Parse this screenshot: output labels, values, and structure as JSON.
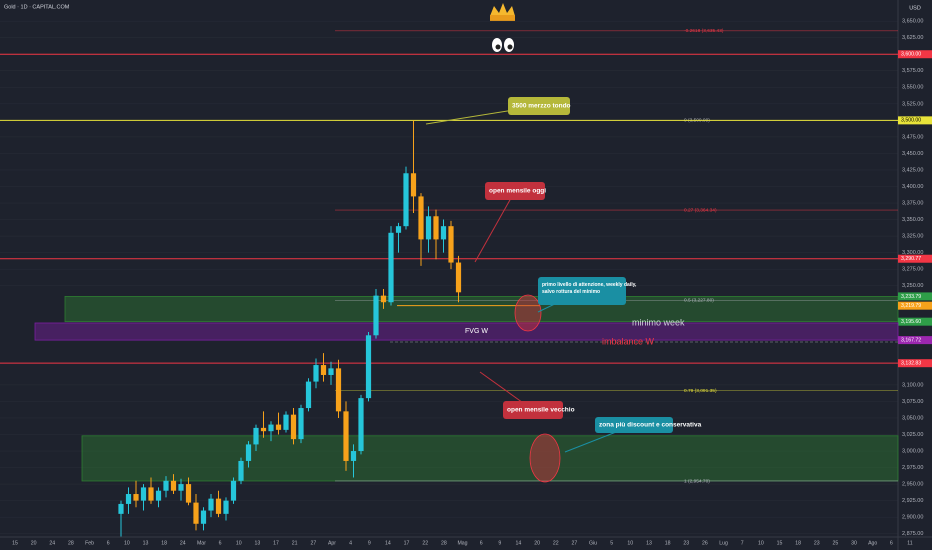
{
  "chart_data": {
    "type": "candlestick",
    "title": "Gold · 1D · CAPITAL.COM",
    "currency": "USD",
    "up_color": "#26c6da",
    "down_color": "#f7a21b",
    "ylim": [
      2870,
      3682
    ],
    "yticks": [
      {
        "value": 3650,
        "label": "3,650.00"
      },
      {
        "value": 3625,
        "label": "3,625.00"
      },
      {
        "value": 3575,
        "label": "3,575.00"
      },
      {
        "value": 3550,
        "label": "3,550.00"
      },
      {
        "value": 3525,
        "label": "3,525.00"
      },
      {
        "value": 3475,
        "label": "3,475.00"
      },
      {
        "value": 3450,
        "label": "3,450.00"
      },
      {
        "value": 3425,
        "label": "3,425.00"
      },
      {
        "value": 3400,
        "label": "3,400.00"
      },
      {
        "value": 3375,
        "label": "3,375.00"
      },
      {
        "value": 3350,
        "label": "3,350.00"
      },
      {
        "value": 3325,
        "label": "3,325.00"
      },
      {
        "value": 3300,
        "label": "3,300.00"
      },
      {
        "value": 3275,
        "label": "3,275.00"
      },
      {
        "value": 3250,
        "label": "3,250.00"
      },
      {
        "value": 3100,
        "label": "3,100.00"
      },
      {
        "value": 3075,
        "label": "3,075.00"
      },
      {
        "value": 3050,
        "label": "3,050.00"
      },
      {
        "value": 3025,
        "label": "3,025.00"
      },
      {
        "value": 3000,
        "label": "3,000.00"
      },
      {
        "value": 2975,
        "label": "2,975.00"
      },
      {
        "value": 2950,
        "label": "2,950.00"
      },
      {
        "value": 2925,
        "label": "2,925.00"
      },
      {
        "value": 2900,
        "label": "2,900.00"
      },
      {
        "value": 2875,
        "label": "2,875.00"
      }
    ],
    "x_labels": [
      "15",
      "20",
      "24",
      "28",
      "Feb",
      "6",
      "10",
      "13",
      "18",
      "24",
      "Mar",
      "6",
      "10",
      "13",
      "17",
      "21",
      "27",
      "Apr",
      "4",
      "9",
      "14",
      "17",
      "22",
      "28",
      "Mag",
      "6",
      "9",
      "14",
      "20",
      "22",
      "27",
      "Giu",
      "5",
      "10",
      "13",
      "18",
      "23",
      "26",
      "Lug",
      "7",
      "10",
      "15",
      "18",
      "23",
      "25",
      "30",
      "Ago",
      "6",
      "11"
    ],
    "open": [
      2905,
      2920,
      2935,
      2925,
      2945,
      2925,
      2940,
      2955,
      2940,
      2950,
      2922,
      2890,
      2910,
      2928,
      2905,
      2925,
      2955,
      2985,
      3010,
      3035,
      3030,
      3040,
      3032,
      3055,
      3018,
      3065,
      3105,
      3130,
      3115,
      3125,
      3060,
      2985,
      3000,
      3080,
      3175,
      3235,
      3225,
      3330,
      3340,
      3420,
      3385,
      3320,
      3355,
      3320,
      3340,
      3285
    ],
    "high": [
      2925,
      2945,
      2955,
      2950,
      2960,
      2945,
      2962,
      2965,
      2958,
      2960,
      2935,
      2915,
      2935,
      2940,
      2930,
      2960,
      2990,
      3015,
      3040,
      3060,
      3045,
      3058,
      3060,
      3065,
      3070,
      3110,
      3140,
      3148,
      3135,
      3138,
      3075,
      3010,
      3085,
      3180,
      3245,
      3245,
      3340,
      3345,
      3430,
      3500,
      3390,
      3370,
      3365,
      3350,
      3348,
      3295
    ],
    "low": [
      2870,
      2905,
      2915,
      2910,
      2920,
      2915,
      2930,
      2935,
      2925,
      2918,
      2880,
      2880,
      2900,
      2900,
      2895,
      2920,
      2950,
      2975,
      3000,
      3020,
      3015,
      3025,
      3028,
      3010,
      3012,
      3060,
      3095,
      3105,
      3100,
      3050,
      2970,
      2960,
      2995,
      3075,
      3170,
      3215,
      3220,
      3300,
      3335,
      3360,
      3280,
      3300,
      3290,
      3300,
      3275,
      3225
    ],
    "close": [
      2920,
      2935,
      2925,
      2945,
      2925,
      2940,
      2955,
      2940,
      2950,
      2922,
      2890,
      2910,
      2928,
      2905,
      2925,
      2955,
      2985,
      3010,
      3035,
      3030,
      3040,
      3032,
      3055,
      3018,
      3065,
      3105,
      3130,
      3115,
      3125,
      3060,
      2985,
      3000,
      3080,
      3175,
      3235,
      3225,
      3330,
      3340,
      3420,
      3385,
      3320,
      3355,
      3320,
      3340,
      3285,
      3240
    ],
    "levels": [
      {
        "value": 3600,
        "label": "3,600.00",
        "color": "#f23645"
      },
      {
        "value": 3500,
        "label": "3,500.00",
        "color": "#e8e33a"
      },
      {
        "value": 3290.77,
        "label": "3,290.77",
        "color": "#f23645"
      },
      {
        "value": 3132.83,
        "label": "3,132.83",
        "color": "#f23645"
      },
      {
        "value": 3219.79,
        "label": "3,219.79",
        "color": "#f7a21b"
      }
    ],
    "zones": [
      {
        "top": 3233.79,
        "bottom": 3195.6,
        "top_label": "3,233.79",
        "bottom_label": "3,195.60",
        "color": "#2e7d32"
      },
      {
        "top": 3193.6,
        "bottom": 3167.72,
        "bottom_label": "3,167.72",
        "color": "#7b1fa2"
      },
      {
        "top": 3023,
        "bottom": 2954.7,
        "color": "#2e7d32"
      }
    ],
    "fib": [
      {
        "value": 3635.43,
        "label": "-0.2618 (3,635.43)",
        "color": "#f23645"
      },
      {
        "value": 3500.09,
        "label": "0 (3,500.09)",
        "color": "#b2b5be"
      },
      {
        "value": 3364.34,
        "label": "0.27 (3,364.34)",
        "color": "#f23645"
      },
      {
        "value": 3227.8,
        "label": "0.5 (3,227.80)",
        "color": "#b2b5be"
      },
      {
        "value": 3091.35,
        "label": "0.79 (3,091.35)",
        "color": "#e8e33a"
      },
      {
        "value": 2954.7,
        "label": "1 (2,954.70)",
        "color": "#b2b5be"
      }
    ],
    "annotations": [
      {
        "lines": [
          "3500 merzzo tondo"
        ],
        "color": "#b5b83a"
      },
      {
        "lines": [
          "open mensile oggi"
        ],
        "color": "#c2313d"
      },
      {
        "lines": [
          "primo livello di attenzione, weekly daily,",
          "salvo rottura del minimo"
        ],
        "color": "#1a8fa3"
      },
      {
        "lines": [
          "open mensile vecchio"
        ],
        "color": "#c2313d"
      },
      {
        "lines": [
          "zona più discount e conservativa"
        ],
        "color": "#1a8fa3"
      }
    ],
    "labels": [
      {
        "text": "FVG W",
        "color": "#ffffff"
      },
      {
        "text": "minimo week",
        "color": "#d1d4dc"
      },
      {
        "text": "imbalance W",
        "color": "#f23645"
      }
    ]
  }
}
